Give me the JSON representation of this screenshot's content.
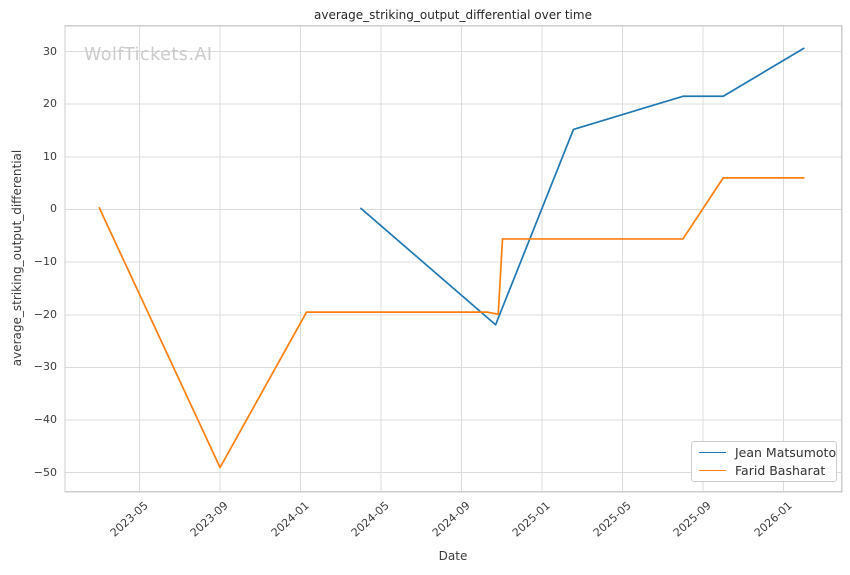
{
  "title": "average_striking_output_differential over time",
  "watermark": "WolfTickets.AI",
  "axes": {
    "x_label": "Date",
    "y_label": "average_striking_output_differential"
  },
  "legend": {
    "items": [
      {
        "label": "Jean Matsumoto",
        "color": "#1f77b4"
      },
      {
        "label": "Farid Basharat",
        "color": "#ff7f0e"
      }
    ]
  },
  "colors": {
    "background": "#ffffff",
    "grid": "#dcdcdc",
    "spine": "#cccccc",
    "tick_text": "#3b3b3b",
    "title_text": "#262626",
    "watermark": "#cbcbcb",
    "series_blue": "#1f77b4",
    "series_orange": "#ff7f0e"
  },
  "chart_data": {
    "type": "line",
    "title": "average_striking_output_differential over time",
    "xlabel": "Date",
    "ylabel": "average_striking_output_differential",
    "grid": true,
    "legend_position": "lower right",
    "x_ticks": [
      "2023-05",
      "2023-09",
      "2024-01",
      "2024-05",
      "2024-09",
      "2025-01",
      "2025-05",
      "2025-09",
      "2026-01"
    ],
    "y_ticks": [
      30,
      20,
      10,
      0,
      -10,
      -20,
      -30,
      -40,
      -50
    ],
    "xlim": [
      "2023-01-10",
      "2026-03-28"
    ],
    "ylim": [
      -53.6,
      34.9
    ],
    "series": [
      {
        "name": "Jean Matsumoto",
        "color": "#1f77b4",
        "points": [
          [
            "2024-04-01",
            0.2
          ],
          [
            "2024-10-22",
            -21.9
          ],
          [
            "2025-02-18",
            15.2
          ],
          [
            "2025-08-01",
            21.5
          ],
          [
            "2025-10-01",
            21.5
          ],
          [
            "2026-02-01",
            30.6
          ]
        ]
      },
      {
        "name": "Farid Basharat",
        "color": "#ff7f0e",
        "points": [
          [
            "2023-03-01",
            0.3
          ],
          [
            "2023-09-01",
            -49.0
          ],
          [
            "2024-01-10",
            -19.5
          ],
          [
            "2024-10-10",
            -19.5
          ],
          [
            "2024-10-26",
            -19.9
          ],
          [
            "2024-11-02",
            -5.6
          ],
          [
            "2025-08-01",
            -5.6
          ],
          [
            "2025-10-01",
            6.0
          ],
          [
            "2026-02-01",
            6.0
          ]
        ]
      }
    ]
  }
}
